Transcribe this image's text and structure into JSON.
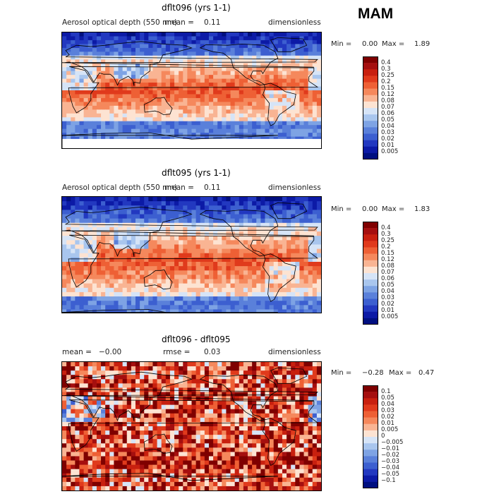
{
  "season": "MAM",
  "panels": [
    {
      "title": "dflt096 (yrs 1-1)",
      "variable": "Aerosol optical depth (550 nm)",
      "mean_label": "mean =",
      "mean_value": "0.11",
      "units": "dimensionless",
      "min_label": "Min =",
      "min_value": "0.00",
      "max_label": "Max =",
      "max_value": "1.89",
      "levels": [
        "0.4",
        "0.3",
        "0.25",
        "0.2",
        "0.15",
        "0.12",
        "0.08",
        "0.07",
        "0.06",
        "0.05",
        "0.04",
        "0.03",
        "0.02",
        "0.01",
        "0.005"
      ]
    },
    {
      "title": "dflt095 (yrs 1-1)",
      "variable": "Aerosol optical depth (550 nm)",
      "mean_label": "mean =",
      "mean_value": "0.11",
      "units": "dimensionless",
      "min_label": "Min =",
      "min_value": "0.00",
      "max_label": "Max =",
      "max_value": "1.83",
      "levels": [
        "0.4",
        "0.3",
        "0.25",
        "0.2",
        "0.15",
        "0.12",
        "0.08",
        "0.07",
        "0.06",
        "0.05",
        "0.04",
        "0.03",
        "0.02",
        "0.01",
        "0.005"
      ]
    },
    {
      "title": "dflt096 - dflt095",
      "mean_label": "mean =",
      "mean_value": "−0.00",
      "rmse_label": "rmse =",
      "rmse_value": "0.03",
      "units": "dimensionless",
      "min_label": "Min =",
      "min_value": "−0.28",
      "max_label": "Max =",
      "max_value": "0.47",
      "levels": [
        "0.1",
        "0.05",
        "0.04",
        "0.03",
        "0.02",
        "0.01",
        "0.005",
        "0",
        "−0.005",
        "−0.01",
        "−0.02",
        "−0.03",
        "−0.04",
        "−0.05",
        "−0.1"
      ]
    }
  ],
  "colors": {
    "scale": [
      "#7f0000",
      "#a50f0f",
      "#c8200f",
      "#e03a1c",
      "#ee6035",
      "#f5885c",
      "#f9b493",
      "#fde3d2",
      "#d6e4f7",
      "#a9c6ee",
      "#7ea3e4",
      "#5a80da",
      "#3c5fd0",
      "#2238c0",
      "#0c1aa6",
      "#000f80"
    ],
    "land_outline": "#000000"
  }
}
